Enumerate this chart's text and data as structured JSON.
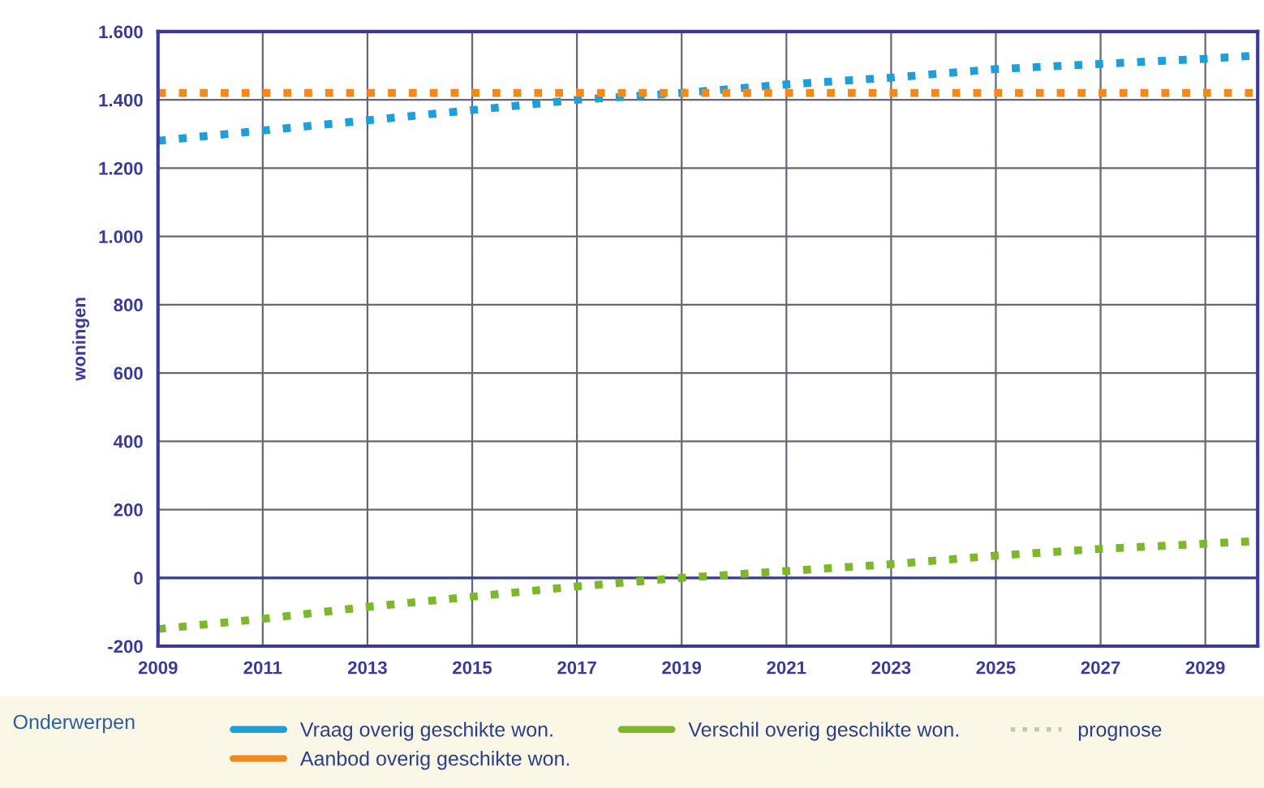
{
  "chart_data": {
    "type": "line",
    "ylabel": "woningen",
    "legend_title": "Onderwerpen",
    "legend": "bottom",
    "grid": true,
    "line_style": "dotted",
    "x": [
      2009,
      2011,
      2013,
      2015,
      2017,
      2019,
      2021,
      2023,
      2025,
      2027,
      2029,
      2030
    ],
    "series": [
      {
        "name": "Vraag overig geschikte won.",
        "color": "#1f9fd8",
        "values": [
          1280,
          1310,
          1340,
          1370,
          1400,
          1420,
          1445,
          1465,
          1490,
          1505,
          1520,
          1530
        ]
      },
      {
        "name": "Aanbod overig geschikte won.",
        "color": "#f08a1c",
        "values": [
          1420,
          1420,
          1420,
          1420,
          1420,
          1420,
          1420,
          1420,
          1420,
          1420,
          1420,
          1420
        ]
      },
      {
        "name": "Verschil overig geschikte won.",
        "color": "#7cb82a",
        "values": [
          -150,
          -120,
          -85,
          -55,
          -25,
          0,
          20,
          40,
          65,
          85,
          100,
          108
        ]
      },
      {
        "name": "prognose",
        "color": "#c8c89a",
        "values": [
          null,
          null,
          null,
          null,
          null,
          null,
          null,
          null,
          null,
          null,
          null,
          null
        ]
      }
    ],
    "ref_lines": [
      {
        "axis": "y",
        "value": 0,
        "color": "#3a3a9a"
      }
    ],
    "xlim": [
      2009,
      2030
    ],
    "xticks": [
      2009,
      2011,
      2013,
      2015,
      2017,
      2019,
      2021,
      2023,
      2025,
      2027,
      2029
    ],
    "ylim": [
      -200,
      1600
    ],
    "yticks": [
      {
        "value": -200,
        "label": "-200"
      },
      0,
      200,
      400,
      600,
      800,
      {
        "value": 1000,
        "label": "1.000"
      },
      {
        "value": 1200,
        "label": "1.200"
      },
      {
        "value": 1400,
        "label": "1.400"
      },
      {
        "value": 1600,
        "label": "1.600"
      }
    ]
  }
}
